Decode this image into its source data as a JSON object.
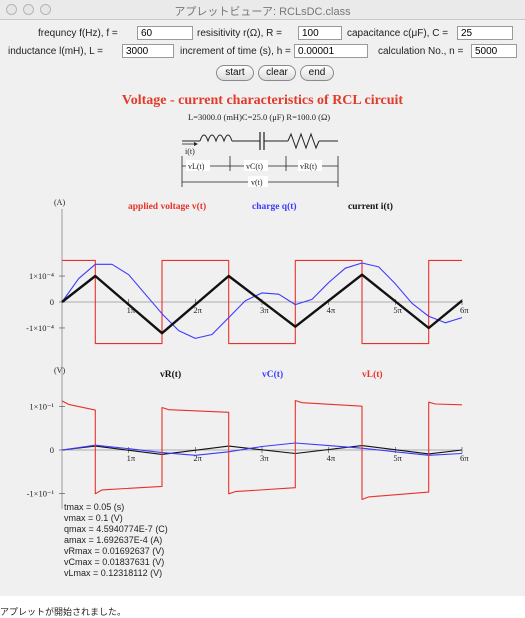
{
  "window": {
    "title": "アプレットビューア: RCLsDC.class"
  },
  "params": {
    "frequency_label": "frequncy f(Hz), f =",
    "frequency_value": "60",
    "resistivity_label": "resisitivity r(Ω), R =",
    "resistivity_value": "100",
    "capacitance_label": "capacitance c(μF), C =",
    "capacitance_value": "25",
    "inductance_label": "inductance l(mH), L =",
    "inductance_value": "3000",
    "increment_label": "increment of time (s), h =",
    "increment_value": "0.00001",
    "calc_label": "calculation No., n =",
    "calc_value": "5000"
  },
  "buttons": {
    "start": "start",
    "clear": "clear",
    "end": "end"
  },
  "heading": "Voltage - current characteristics of RCL circuit",
  "circuit": {
    "top_label": "L=3000.0 (mH)C=25.0 (μF)  R=100.0 (Ω)",
    "current_label": "i(t)",
    "vL_label": "vL(t)",
    "vC_label": "vC(t)",
    "vR_label": "vR(t)",
    "v_label": "v(t)"
  },
  "chart_data": [
    {
      "type": "line",
      "unit_label": "(A)",
      "legend": [
        {
          "name": "applied voltage v(t)",
          "color": "#e8312a"
        },
        {
          "name": "charge q(t)",
          "color": "#3a3aff"
        },
        {
          "name": "current i(t)",
          "color": "#111111"
        }
      ],
      "x_ticks": [
        "1π",
        "2π",
        "3π",
        "4π",
        "5π",
        "6π"
      ],
      "y_ticks": [
        "1×10⁻⁴",
        "0",
        "-1×10⁻⁴"
      ],
      "ylim": [
        -0.0001692637,
        0.0001692637
      ],
      "xlim": [
        0,
        6
      ],
      "series": [
        {
          "name": "applied voltage v(t)",
          "color": "#e8312a",
          "points": [
            [
              0,
              0.00016
            ],
            [
              0.5,
              0.00016
            ],
            [
              0.5,
              -0.00016
            ],
            [
              1.5,
              -0.00016
            ],
            [
              1.5,
              0.00016
            ],
            [
              2.5,
              0.00016
            ],
            [
              2.5,
              -0.00016
            ],
            [
              3.5,
              -0.00016
            ],
            [
              3.5,
              0.00016
            ],
            [
              4.5,
              0.00016
            ],
            [
              4.5,
              -0.00016
            ],
            [
              5.5,
              -0.00016
            ],
            [
              5.5,
              0.00016
            ],
            [
              6,
              0.00016
            ]
          ]
        },
        {
          "name": "charge q(t)",
          "color": "#3a3aff",
          "points": [
            [
              0,
              0
            ],
            [
              0.25,
              9e-05
            ],
            [
              0.5,
              0.000145
            ],
            [
              0.75,
              0.000145
            ],
            [
              1.0,
              0.000105
            ],
            [
              1.25,
              3e-05
            ],
            [
              1.5,
              -4.5e-05
            ],
            [
              1.75,
              -0.00011
            ],
            [
              2.0,
              -0.00014
            ],
            [
              2.25,
              -0.000125
            ],
            [
              2.5,
              -6e-05
            ],
            [
              2.75,
              5e-06
            ],
            [
              3.0,
              3.5e-05
            ],
            [
              3.25,
              3e-05
            ],
            [
              3.5,
              -1e-05
            ],
            [
              3.75,
              1e-05
            ],
            [
              4.0,
              7.5e-05
            ],
            [
              4.25,
              0.00013
            ],
            [
              4.5,
              0.00015
            ],
            [
              4.75,
              0.000135
            ],
            [
              5.0,
              7e-05
            ],
            [
              5.25,
              -5e-06
            ],
            [
              5.5,
              -5.5e-05
            ],
            [
              5.75,
              -8e-05
            ],
            [
              6.0,
              -6e-05
            ]
          ]
        },
        {
          "name": "current i(t)",
          "color": "#111111",
          "points": [
            [
              0,
              0
            ],
            [
              0.5,
              0.0001
            ],
            [
              1.5,
              -0.00012
            ],
            [
              2.5,
              0.0001
            ],
            [
              3.5,
              -9.5e-05
            ],
            [
              4.5,
              0.000105
            ],
            [
              5.5,
              -0.0001
            ],
            [
              6.0,
              5e-06
            ]
          ]
        }
      ]
    },
    {
      "type": "line",
      "unit_label": "(V)",
      "legend": [
        {
          "name": "vR(t)",
          "color": "#111111"
        },
        {
          "name": "vC(t)",
          "color": "#3a3aff"
        },
        {
          "name": "vL(t)",
          "color": "#e8312a"
        }
      ],
      "x_ticks": [
        "1π",
        "2π",
        "3π",
        "4π",
        "5π",
        "6π"
      ],
      "y_ticks": [
        "1×10⁻¹",
        "0",
        "-1×10⁻¹"
      ],
      "ylim": [
        -0.1231811,
        0.1231811
      ],
      "xlim": [
        0,
        6
      ],
      "series": [
        {
          "name": "vR(t)",
          "color": "#111111",
          "points": [
            [
              0,
              0
            ],
            [
              0.5,
              0.009
            ],
            [
              1.5,
              -0.01
            ],
            [
              2.5,
              0.009
            ],
            [
              3.5,
              -0.008
            ],
            [
              4.5,
              0.01
            ],
            [
              5.5,
              -0.009
            ],
            [
              6,
              0
            ]
          ]
        },
        {
          "name": "vC(t)",
          "color": "#3a3aff",
          "points": [
            [
              0,
              0
            ],
            [
              0.5,
              0.011
            ],
            [
              1.0,
              0.003
            ],
            [
              1.5,
              -0.006
            ],
            [
              2.0,
              -0.012
            ],
            [
              2.5,
              -0.004
            ],
            [
              3.0,
              0.008
            ],
            [
              3.5,
              0.016
            ],
            [
              4.0,
              0.01
            ],
            [
              4.5,
              0.004
            ],
            [
              5.0,
              -0.004
            ],
            [
              5.5,
              -0.012
            ],
            [
              6,
              -0.008
            ]
          ]
        },
        {
          "name": "vL(t)",
          "color": "#e8312a",
          "points": [
            [
              0,
              0.112
            ],
            [
              0.1,
              0.104
            ],
            [
              0.5,
              0.091
            ],
            [
              0.5,
              -0.1
            ],
            [
              0.6,
              -0.091
            ],
            [
              1.5,
              -0.083
            ],
            [
              1.5,
              0.097
            ],
            [
              1.6,
              0.092
            ],
            [
              2.5,
              0.086
            ],
            [
              2.5,
              -0.1
            ],
            [
              2.6,
              -0.095
            ],
            [
              3.5,
              -0.086
            ],
            [
              3.5,
              0.113
            ],
            [
              3.6,
              0.108
            ],
            [
              4.5,
              0.1
            ],
            [
              4.5,
              -0.113
            ],
            [
              4.6,
              -0.107
            ],
            [
              5.5,
              -0.096
            ],
            [
              5.5,
              0.109
            ],
            [
              5.6,
              0.105
            ],
            [
              6,
              0.103
            ]
          ]
        }
      ]
    }
  ],
  "readout": [
    "tmax = 0.05 (s)",
    "vmax = 0.1 (V)",
    "qmax = 4.5940774E-7 (C)",
    "amax = 1.692637E-4 (A)",
    "vRmax = 0.01692637 (V)",
    "vCmax = 0.01837631 (V)",
    "vLmax = 0.12318112 (V)"
  ],
  "status": "アプレットが開始されました。"
}
